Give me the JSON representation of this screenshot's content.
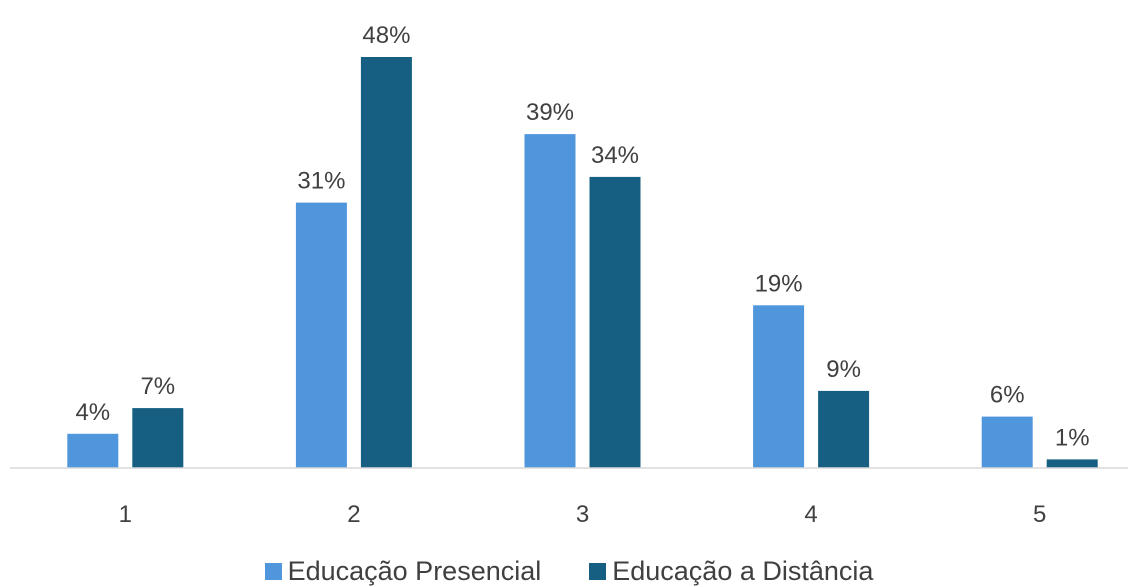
{
  "chart_data": {
    "type": "bar",
    "title": "",
    "xlabel": "",
    "ylabel": "",
    "categories": [
      "1",
      "2",
      "3",
      "4",
      "5"
    ],
    "series": [
      {
        "name": "Educação Presencial",
        "values": [
          4,
          31,
          39,
          19,
          6
        ],
        "labels": [
          "4%",
          "31%",
          "39%",
          "19%",
          "6%"
        ],
        "color": "#5096DC"
      },
      {
        "name": "Educação a Distância",
        "values": [
          7,
          48,
          34,
          9,
          1
        ],
        "labels": [
          "7%",
          "48%",
          "34%",
          "9%",
          "1%"
        ],
        "color": "#165F82"
      }
    ],
    "ylim": [
      0,
      48
    ],
    "grid": false,
    "legend_position": "bottom"
  }
}
